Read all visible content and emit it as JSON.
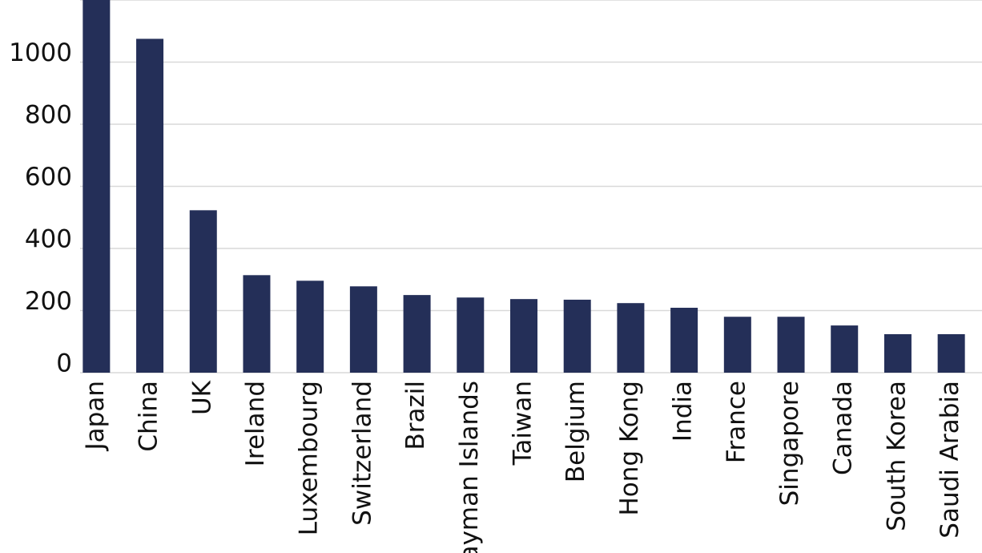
{
  "chart_data": {
    "type": "bar",
    "categories": [
      "Japan",
      "China",
      "UK",
      "Ireland",
      "Luxembourg",
      "Switzerland",
      "Brazil",
      "Cayman Islands",
      "Taiwan",
      "Belgium",
      "Hong Kong",
      "India",
      "France",
      "Singapore",
      "Canada",
      "South Korea",
      "Saudi Arabia"
    ],
    "values": [
      1250,
      1075,
      523,
      314,
      296,
      278,
      250,
      242,
      237,
      235,
      224,
      209,
      180,
      180,
      152,
      124,
      124
    ],
    "color": "#242f58",
    "ylim": [
      0,
      1200
    ],
    "yticks": [
      0,
      200,
      400,
      600,
      800,
      1000,
      1200
    ],
    "grid": true
  }
}
